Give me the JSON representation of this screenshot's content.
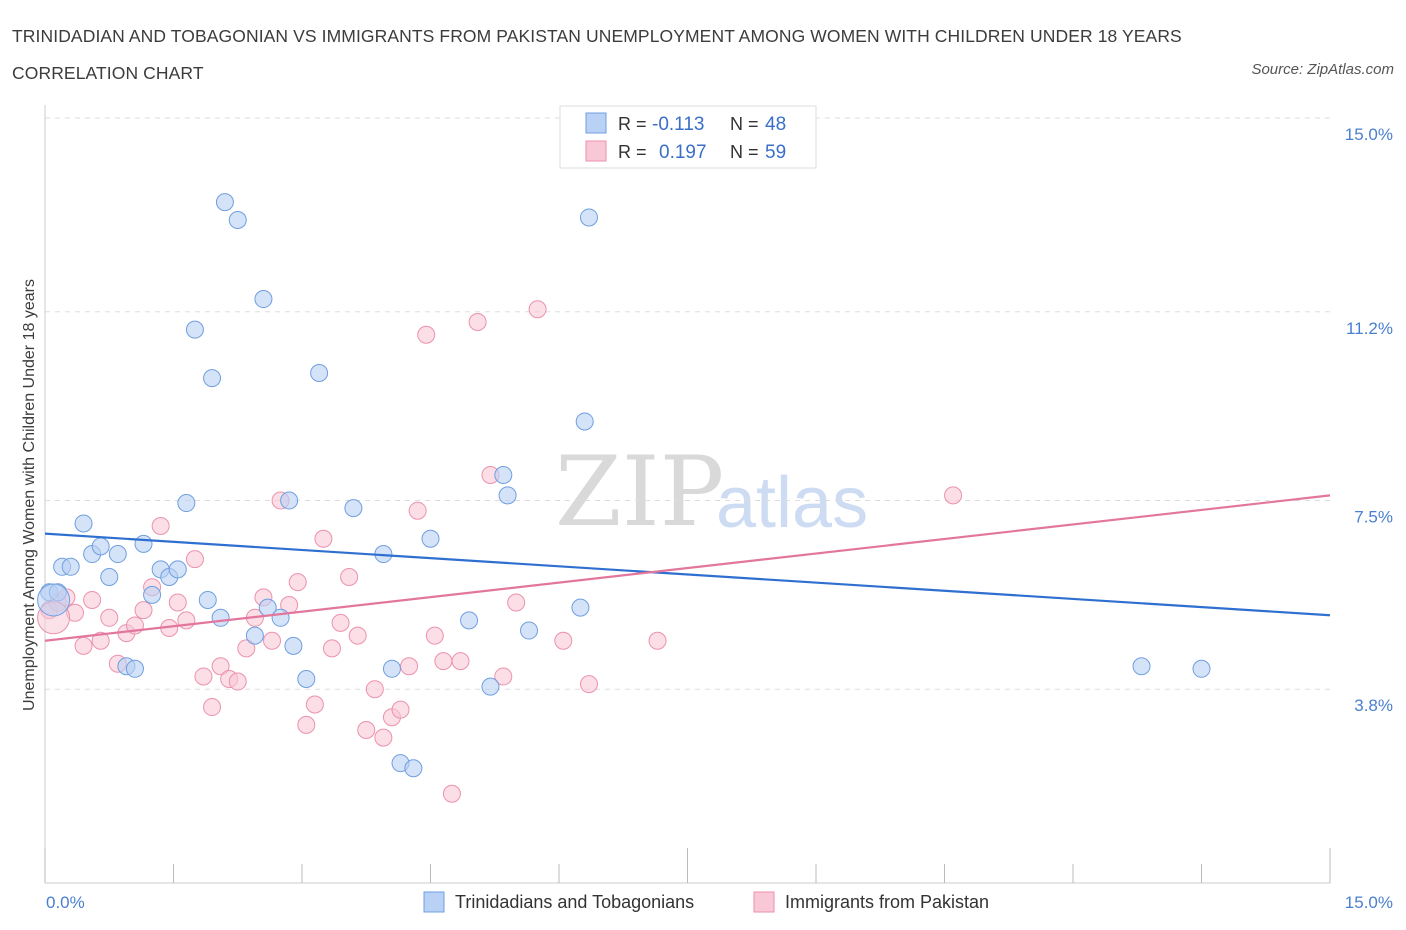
{
  "title": "TRINIDADIAN AND TOBAGONIAN VS IMMIGRANTS FROM PAKISTAN UNEMPLOYMENT AMONG WOMEN WITH CHILDREN UNDER 18 YEARS CORRELATION CHART",
  "source": "Source: ZipAtlas.com",
  "watermark": {
    "zip": "ZIP",
    "atlas": "atlas"
  },
  "legend": {
    "r_label": "R =",
    "n_label": "N =",
    "series1": {
      "r": "-0.113",
      "n": "48"
    },
    "series2": {
      "r": "0.197",
      "n": "59"
    }
  },
  "colors": {
    "series1_fill": "#b9d1f4",
    "series1_stroke": "#6f9fe0",
    "series1_line": "#2f6fd0",
    "series2_fill": "#f8c8d6",
    "series2_stroke": "#ec92ad",
    "series2_line": "#e2769d",
    "tick_text": "#4a7fd0",
    "grid": "#dddddd"
  },
  "chart_data": {
    "type": "scatter",
    "xlabel": "",
    "ylabel": "Unemployment Among Women with Children Under 18 years",
    "xlim": [
      0,
      15
    ],
    "ylim": [
      0,
      15
    ],
    "x_tick_labels": [
      "0.0%",
      "15.0%"
    ],
    "y_ticks": [
      3.8,
      7.5,
      11.2,
      15.0
    ],
    "y_tick_labels": [
      "3.8%",
      "7.5%",
      "11.2%",
      "15.0%"
    ],
    "grid": "horizontal dashed",
    "legend_placement": "top-center and bottom",
    "series": [
      {
        "name": "Trinidadians and Tobagonians",
        "trend": {
          "x": [
            0,
            15
          ],
          "y": [
            6.85,
            5.25
          ]
        },
        "points": [
          [
            0.05,
            5.7
          ],
          [
            0.15,
            5.7
          ],
          [
            0.2,
            6.2
          ],
          [
            0.3,
            6.2
          ],
          [
            0.45,
            7.05
          ],
          [
            0.55,
            6.45
          ],
          [
            0.65,
            6.6
          ],
          [
            0.75,
            6.0
          ],
          [
            0.85,
            6.45
          ],
          [
            0.95,
            4.25
          ],
          [
            1.05,
            4.2
          ],
          [
            1.15,
            6.65
          ],
          [
            1.25,
            5.65
          ],
          [
            1.35,
            6.15
          ],
          [
            1.45,
            6.0
          ],
          [
            1.55,
            6.15
          ],
          [
            1.65,
            7.45
          ],
          [
            1.75,
            10.85
          ],
          [
            1.9,
            5.55
          ],
          [
            1.95,
            9.9
          ],
          [
            2.05,
            5.2
          ],
          [
            2.1,
            13.35
          ],
          [
            2.25,
            13.0
          ],
          [
            2.45,
            4.85
          ],
          [
            2.55,
            11.45
          ],
          [
            2.6,
            5.4
          ],
          [
            2.75,
            5.2
          ],
          [
            2.85,
            7.5
          ],
          [
            2.9,
            4.65
          ],
          [
            3.05,
            4.0
          ],
          [
            3.2,
            10.0
          ],
          [
            3.6,
            7.35
          ],
          [
            3.95,
            6.45
          ],
          [
            4.05,
            4.2
          ],
          [
            4.15,
            2.35
          ],
          [
            4.3,
            2.25
          ],
          [
            4.5,
            6.75
          ],
          [
            4.95,
            5.15
          ],
          [
            5.2,
            3.85
          ],
          [
            5.35,
            8.0
          ],
          [
            5.4,
            7.6
          ],
          [
            5.65,
            4.95
          ],
          [
            6.25,
            5.4
          ],
          [
            6.3,
            9.05
          ],
          [
            6.35,
            13.05
          ],
          [
            12.8,
            4.25
          ],
          [
            13.5,
            4.2
          ],
          [
            0.1,
            5.55
          ]
        ]
      },
      {
        "name": "Immigrants from Pakistan",
        "trend": {
          "x": [
            0,
            15
          ],
          "y": [
            4.75,
            7.6
          ]
        },
        "points": [
          [
            0.05,
            5.35
          ],
          [
            0.15,
            5.5
          ],
          [
            0.25,
            5.6
          ],
          [
            0.35,
            5.3
          ],
          [
            0.45,
            4.65
          ],
          [
            0.55,
            5.55
          ],
          [
            0.65,
            4.75
          ],
          [
            0.75,
            5.2
          ],
          [
            0.85,
            4.3
          ],
          [
            0.95,
            4.9
          ],
          [
            1.05,
            5.05
          ],
          [
            1.15,
            5.35
          ],
          [
            1.25,
            5.8
          ],
          [
            1.35,
            7.0
          ],
          [
            1.45,
            5.0
          ],
          [
            1.55,
            5.5
          ],
          [
            1.65,
            5.15
          ],
          [
            1.75,
            6.35
          ],
          [
            1.85,
            4.05
          ],
          [
            1.95,
            3.45
          ],
          [
            2.05,
            4.25
          ],
          [
            2.15,
            4.0
          ],
          [
            2.25,
            3.95
          ],
          [
            2.35,
            4.6
          ],
          [
            2.45,
            5.2
          ],
          [
            2.55,
            5.6
          ],
          [
            2.65,
            4.75
          ],
          [
            2.75,
            7.5
          ],
          [
            2.85,
            5.45
          ],
          [
            2.95,
            5.9
          ],
          [
            3.05,
            3.1
          ],
          [
            3.15,
            3.5
          ],
          [
            3.25,
            6.75
          ],
          [
            3.35,
            4.6
          ],
          [
            3.45,
            5.1
          ],
          [
            3.55,
            6.0
          ],
          [
            3.65,
            4.85
          ],
          [
            3.75,
            3.0
          ],
          [
            3.85,
            3.8
          ],
          [
            3.95,
            2.85
          ],
          [
            4.05,
            3.25
          ],
          [
            4.15,
            3.4
          ],
          [
            4.25,
            4.25
          ],
          [
            4.35,
            7.3
          ],
          [
            4.45,
            10.75
          ],
          [
            4.55,
            4.85
          ],
          [
            4.65,
            4.35
          ],
          [
            4.75,
            1.75
          ],
          [
            4.85,
            4.35
          ],
          [
            5.05,
            11.0
          ],
          [
            5.2,
            8.0
          ],
          [
            5.35,
            4.05
          ],
          [
            5.5,
            5.5
          ],
          [
            5.75,
            11.25
          ],
          [
            6.05,
            4.75
          ],
          [
            6.35,
            3.9
          ],
          [
            7.15,
            4.75
          ],
          [
            10.6,
            7.6
          ],
          [
            0.1,
            5.2
          ]
        ]
      }
    ]
  }
}
